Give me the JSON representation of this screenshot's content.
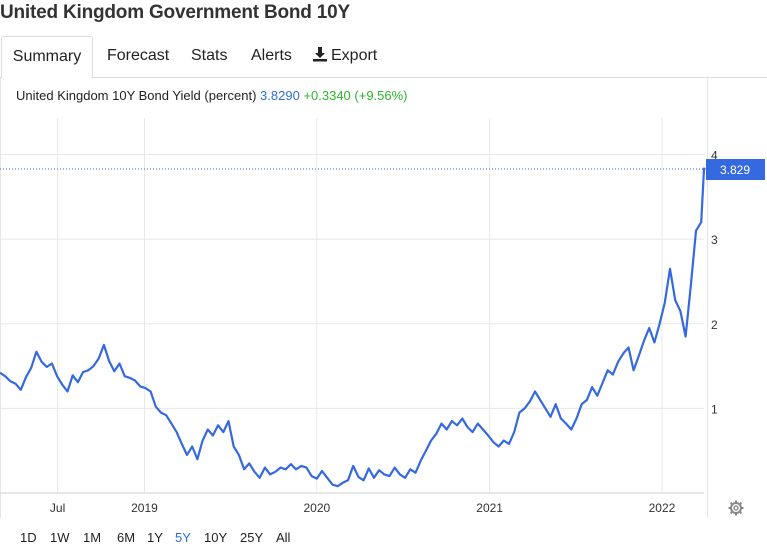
{
  "title": "United Kingdom Government Bond 10Y",
  "tabs": [
    {
      "label": "Summary",
      "active": true
    },
    {
      "label": "Forecast"
    },
    {
      "label": "Stats"
    },
    {
      "label": "Alerts"
    },
    {
      "label": "Export",
      "icon": "download-icon"
    }
  ],
  "quote": {
    "name": "United Kingdom 10Y Bond Yield (percent)",
    "value": "3.8290",
    "change": "+0.3340 (+9.56%)"
  },
  "periods": {
    "items": [
      "1D",
      "1W",
      "1M",
      "6M",
      "1Y",
      "5Y",
      "10Y",
      "25Y",
      "All"
    ],
    "active": "5Y"
  },
  "settings_icon": "gear-icon",
  "colors": {
    "line": "#3569e0",
    "value_text": "#2f6fd6",
    "change_positive": "#2bb52b",
    "last_label_bg": "#3569e0",
    "grid": "#e8e8e8"
  },
  "chart_data": {
    "type": "line",
    "title": "",
    "xlabel": "",
    "ylabel": "",
    "ylim": [
      0,
      4.03
    ],
    "yticks": [
      1,
      2,
      3,
      4
    ],
    "xticks": [
      {
        "label": "Jul",
        "date": "2018-07-01"
      },
      {
        "label": "2019",
        "date": "2019-01-01"
      },
      {
        "label": "2020",
        "date": "2020-01-01"
      },
      {
        "label": "2021",
        "date": "2021-01-01"
      },
      {
        "label": "2022",
        "date": "2022-01-01"
      }
    ],
    "last_value_label": "3.829",
    "grid": true,
    "series": [
      {
        "points": [
          [
            "2018-03-01",
            1.42
          ],
          [
            "2018-03-12",
            1.38
          ],
          [
            "2018-03-23",
            1.32
          ],
          [
            "2018-04-03",
            1.29
          ],
          [
            "2018-04-14",
            1.22
          ],
          [
            "2018-04-25",
            1.37
          ],
          [
            "2018-05-06",
            1.48
          ],
          [
            "2018-05-17",
            1.67
          ],
          [
            "2018-05-28",
            1.55
          ],
          [
            "2018-06-08",
            1.49
          ],
          [
            "2018-06-19",
            1.53
          ],
          [
            "2018-06-30",
            1.38
          ],
          [
            "2018-07-11",
            1.28
          ],
          [
            "2018-07-22",
            1.2
          ],
          [
            "2018-08-02",
            1.39
          ],
          [
            "2018-08-13",
            1.31
          ],
          [
            "2018-08-24",
            1.43
          ],
          [
            "2018-09-04",
            1.45
          ],
          [
            "2018-09-15",
            1.5
          ],
          [
            "2018-09-26",
            1.59
          ],
          [
            "2018-10-07",
            1.75
          ],
          [
            "2018-10-18",
            1.56
          ],
          [
            "2018-10-29",
            1.44
          ],
          [
            "2018-11-09",
            1.53
          ],
          [
            "2018-11-20",
            1.38
          ],
          [
            "2018-12-01",
            1.36
          ],
          [
            "2018-12-12",
            1.33
          ],
          [
            "2018-12-23",
            1.26
          ],
          [
            "2019-01-03",
            1.24
          ],
          [
            "2019-01-14",
            1.2
          ],
          [
            "2019-01-25",
            1.02
          ],
          [
            "2019-02-05",
            0.95
          ],
          [
            "2019-02-16",
            0.92
          ],
          [
            "2019-02-27",
            0.82
          ],
          [
            "2019-03-10",
            0.72
          ],
          [
            "2019-03-21",
            0.58
          ],
          [
            "2019-04-01",
            0.45
          ],
          [
            "2019-04-12",
            0.55
          ],
          [
            "2019-04-23",
            0.4
          ],
          [
            "2019-05-04",
            0.62
          ],
          [
            "2019-05-15",
            0.75
          ],
          [
            "2019-05-26",
            0.68
          ],
          [
            "2019-06-06",
            0.8
          ],
          [
            "2019-06-17",
            0.72
          ],
          [
            "2019-06-28",
            0.85
          ],
          [
            "2019-07-09",
            0.55
          ],
          [
            "2019-07-20",
            0.45
          ],
          [
            "2019-07-31",
            0.28
          ],
          [
            "2019-08-11",
            0.35
          ],
          [
            "2019-08-22",
            0.25
          ],
          [
            "2019-09-02",
            0.18
          ],
          [
            "2019-09-13",
            0.3
          ],
          [
            "2019-09-24",
            0.22
          ],
          [
            "2019-10-05",
            0.25
          ],
          [
            "2019-10-16",
            0.3
          ],
          [
            "2019-10-27",
            0.28
          ],
          [
            "2019-11-07",
            0.34
          ],
          [
            "2019-11-18",
            0.28
          ],
          [
            "2019-11-29",
            0.32
          ],
          [
            "2019-12-10",
            0.3
          ],
          [
            "2019-12-21",
            0.2
          ],
          [
            "2020-01-01",
            0.17
          ],
          [
            "2020-01-12",
            0.26
          ],
          [
            "2020-01-23",
            0.18
          ],
          [
            "2020-02-03",
            0.1
          ],
          [
            "2020-02-14",
            0.08
          ],
          [
            "2020-02-25",
            0.12
          ],
          [
            "2020-03-07",
            0.15
          ],
          [
            "2020-03-18",
            0.32
          ],
          [
            "2020-03-29",
            0.19
          ],
          [
            "2020-04-09",
            0.15
          ],
          [
            "2020-04-20",
            0.29
          ],
          [
            "2020-05-01",
            0.18
          ],
          [
            "2020-05-12",
            0.27
          ],
          [
            "2020-05-23",
            0.22
          ],
          [
            "2020-06-03",
            0.2
          ],
          [
            "2020-06-14",
            0.3
          ],
          [
            "2020-06-25",
            0.22
          ],
          [
            "2020-07-06",
            0.18
          ],
          [
            "2020-07-17",
            0.28
          ],
          [
            "2020-07-28",
            0.24
          ],
          [
            "2020-08-08",
            0.38
          ],
          [
            "2020-08-19",
            0.5
          ],
          [
            "2020-08-30",
            0.62
          ],
          [
            "2020-09-10",
            0.7
          ],
          [
            "2020-09-21",
            0.82
          ],
          [
            "2020-10-02",
            0.75
          ],
          [
            "2020-10-13",
            0.85
          ],
          [
            "2020-10-24",
            0.8
          ],
          [
            "2020-11-04",
            0.88
          ],
          [
            "2020-11-15",
            0.78
          ],
          [
            "2020-11-26",
            0.72
          ],
          [
            "2020-12-07",
            0.82
          ],
          [
            "2020-12-18",
            0.75
          ],
          [
            "2020-12-29",
            0.68
          ],
          [
            "2021-01-09",
            0.6
          ],
          [
            "2021-01-20",
            0.55
          ],
          [
            "2021-01-31",
            0.62
          ],
          [
            "2021-02-11",
            0.58
          ],
          [
            "2021-02-22",
            0.72
          ],
          [
            "2021-03-05",
            0.95
          ],
          [
            "2021-03-16",
            1.0
          ],
          [
            "2021-03-27",
            1.08
          ],
          [
            "2021-04-07",
            1.2
          ],
          [
            "2021-04-18",
            1.1
          ],
          [
            "2021-04-29",
            1.0
          ],
          [
            "2021-05-10",
            0.9
          ],
          [
            "2021-05-21",
            1.05
          ],
          [
            "2021-06-01",
            0.88
          ],
          [
            "2021-06-12",
            0.82
          ],
          [
            "2021-06-23",
            0.75
          ],
          [
            "2021-07-04",
            0.88
          ],
          [
            "2021-07-15",
            1.05
          ],
          [
            "2021-07-26",
            1.1
          ],
          [
            "2021-08-06",
            1.25
          ],
          [
            "2021-08-17",
            1.15
          ],
          [
            "2021-08-28",
            1.3
          ],
          [
            "2021-09-08",
            1.45
          ],
          [
            "2021-09-19",
            1.4
          ],
          [
            "2021-09-30",
            1.55
          ],
          [
            "2021-10-11",
            1.65
          ],
          [
            "2021-10-22",
            1.72
          ],
          [
            "2021-11-02",
            1.45
          ],
          [
            "2021-11-13",
            1.62
          ],
          [
            "2021-11-24",
            1.8
          ],
          [
            "2021-12-05",
            1.95
          ],
          [
            "2021-12-16",
            1.78
          ],
          [
            "2021-12-27",
            2.0
          ],
          [
            "2022-01-07",
            2.25
          ],
          [
            "2022-01-18",
            2.65
          ],
          [
            "2022-01-29",
            2.28
          ],
          [
            "2022-02-09",
            2.15
          ],
          [
            "2022-02-20",
            1.85
          ],
          [
            "2022-03-03",
            2.45
          ],
          [
            "2022-03-14",
            3.1
          ],
          [
            "2022-03-25",
            3.2
          ],
          [
            "2022-03-31",
            3.829
          ]
        ]
      }
    ]
  }
}
